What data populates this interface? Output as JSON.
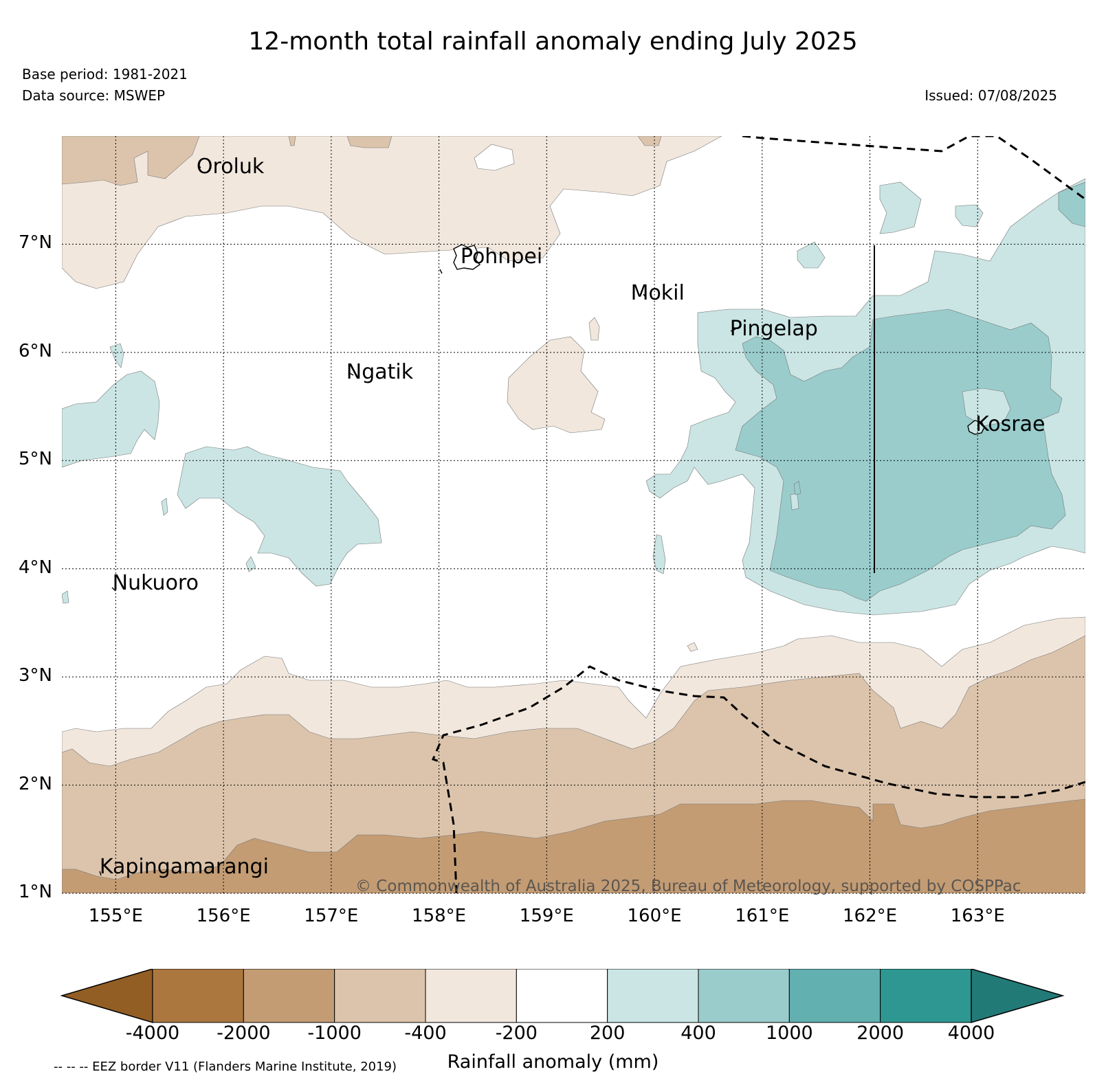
{
  "title": "12-month total rainfall anomaly ending July 2025",
  "base_period": "Base period: 1981-2021",
  "data_source": "Data source: MSWEP",
  "issued": "Issued: 07/08/2025",
  "map": {
    "lon_range": [
      154.5,
      164.0
    ],
    "lat_range": [
      1.0,
      8.0
    ],
    "lon_ticks": [
      "155°E",
      "156°E",
      "157°E",
      "158°E",
      "159°E",
      "160°E",
      "161°E",
      "162°E",
      "163°E"
    ],
    "lat_ticks": [
      "1°N",
      "2°N",
      "3°N",
      "4°N",
      "5°N",
      "6°N",
      "7°N"
    ],
    "grid": "dotted",
    "places": [
      {
        "name": "Oroluk",
        "lon": 155.75,
        "lat": 7.7
      },
      {
        "name": "Pohnpei",
        "lon": 158.2,
        "lat": 6.87
      },
      {
        "name": "Mokil",
        "lon": 159.78,
        "lat": 6.53
      },
      {
        "name": "Pingelap",
        "lon": 160.7,
        "lat": 6.2
      },
      {
        "name": "Ngatik",
        "lon": 157.14,
        "lat": 5.8
      },
      {
        "name": "Kosrae",
        "lon": 162.98,
        "lat": 5.32
      },
      {
        "name": "Nukuoro",
        "lon": 154.97,
        "lat": 3.85
      },
      {
        "name": "Kapingamarangi",
        "lon": 154.85,
        "lat": 1.23
      }
    ],
    "credit": "© Commonwealth of Australia 2025, Bureau of Meteorology, supported by COSPPac"
  },
  "colorbar": {
    "label": "Rainfall anomaly (mm)",
    "ticks": [
      "-4000",
      "-2000",
      "-1000",
      "-400",
      "-200",
      "200",
      "400",
      "1000",
      "2000",
      "4000"
    ],
    "colors": [
      "#935e24",
      "#ab773f",
      "#c39c74",
      "#dcc4ac",
      "#f1e7dd",
      "#ffffff",
      "#cae5e4",
      "#9acccc",
      "#62b0af",
      "#2e9791",
      "#227a77"
    ]
  },
  "eez_note": "-- -- -- EEZ border V11 (Flanders Marine Institute, 2019)"
}
